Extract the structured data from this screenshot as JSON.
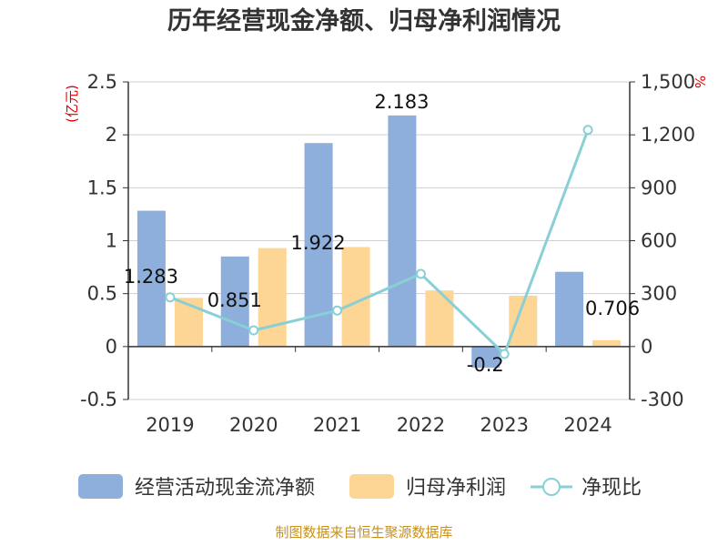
{
  "chart_data": {
    "type": "bar",
    "title": "历年经营现金净额、归母净利润情况",
    "categories": [
      "2019",
      "2020",
      "2021",
      "2022",
      "2023",
      "2024"
    ],
    "series": [
      {
        "name": "经营活动现金流净额",
        "kind": "bar",
        "axis": "left",
        "color": "#8eaedb",
        "values": [
          1.283,
          0.851,
          1.922,
          2.183,
          -0.2,
          0.706
        ],
        "labels": [
          "1.283",
          "0.851",
          "1.922",
          "2.183",
          "-0.2",
          "0.706"
        ]
      },
      {
        "name": "归母净利润",
        "kind": "bar",
        "axis": "left",
        "color": "#fdd594",
        "values": [
          0.46,
          0.93,
          0.94,
          0.53,
          0.48,
          0.06
        ]
      },
      {
        "name": "净现比",
        "kind": "line",
        "axis": "right",
        "color": "#88d0d6",
        "values": [
          279,
          92,
          204,
          412,
          -42,
          1228
        ]
      }
    ],
    "y_left": {
      "unit": "(亿元)",
      "ylim": [
        -0.5,
        2.5
      ],
      "ticks": [
        {
          "v": 2.5,
          "t": "2.5"
        },
        {
          "v": 2,
          "t": "2"
        },
        {
          "v": 1.5,
          "t": "1.5"
        },
        {
          "v": 1,
          "t": "1"
        },
        {
          "v": 0.5,
          "t": "0.5"
        },
        {
          "v": 0,
          "t": "0"
        },
        {
          "v": -0.5,
          "t": "-0.5"
        }
      ]
    },
    "y_right": {
      "unit": "%",
      "ylim": [
        -300,
        1500
      ],
      "ticks": [
        {
          "v": 1500,
          "t": "1,500"
        },
        {
          "v": 1200,
          "t": "1,200"
        },
        {
          "v": 900,
          "t": "900"
        },
        {
          "v": 600,
          "t": "600"
        },
        {
          "v": 300,
          "t": "300"
        },
        {
          "v": 0,
          "t": "0"
        },
        {
          "v": -300,
          "t": "-300"
        }
      ]
    },
    "grid": true,
    "legend": "bottom",
    "source": "制图数据来自恒生聚源数据库"
  }
}
